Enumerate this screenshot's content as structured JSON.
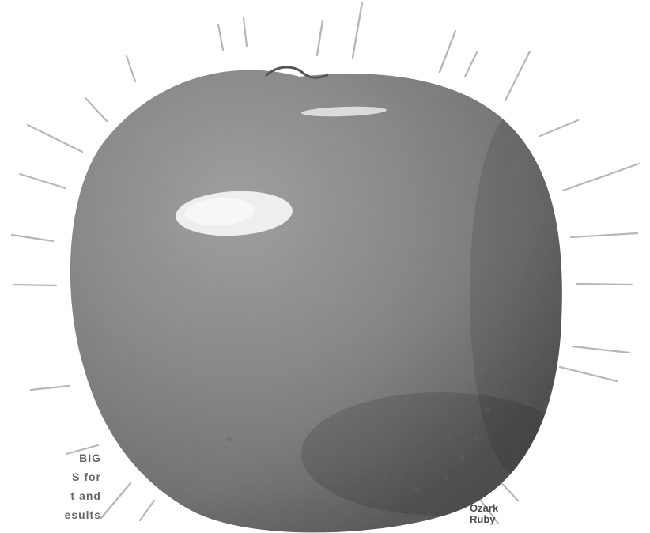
{
  "image": {
    "subject": "apple",
    "style": "grayscale advertisement illustration with radiating glow lines",
    "background_color": "#ffffff",
    "apple_colors": {
      "base": "#858585",
      "shadow": "#616161",
      "highlight": "#f7f7f7"
    }
  },
  "left_copy": {
    "lines": [
      "BIG",
      "S for",
      "t and",
      "esults"
    ]
  },
  "variety_label": {
    "lines": [
      "Ozark",
      "Ruby"
    ]
  }
}
